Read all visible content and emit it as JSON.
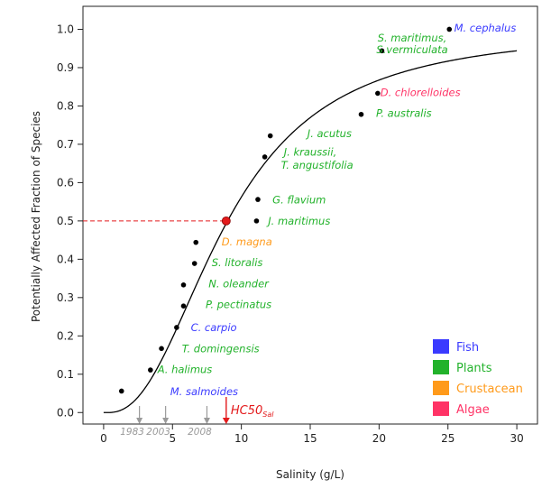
{
  "chart_data": {
    "type": "scatter",
    "xlabel": "Salinity (g/L)",
    "ylabel": "Potentially Affected Fraction of Species",
    "xlim": [
      -1.5,
      31.5
    ],
    "ylim": [
      -0.03,
      1.06
    ],
    "x_ticks": [
      "0",
      "5",
      "10",
      "15",
      "20",
      "25",
      "30"
    ],
    "y_ticks": [
      "0.0",
      "0.1",
      "0.2",
      "0.3",
      "0.4",
      "0.5",
      "0.6",
      "0.7",
      "0.8",
      "0.9",
      "1.0"
    ],
    "curve": {
      "type": "sigmoid",
      "x0": 0.3,
      "x50": 9.0,
      "slope": 2.3,
      "color": "#000000"
    },
    "hc50": {
      "x": 8.9,
      "y": 0.5,
      "label": "HC50",
      "subscript": "Sal",
      "color": "#e31a1c"
    },
    "year_markers": [
      {
        "x": 2.6,
        "label": "1983"
      },
      {
        "x": 4.5,
        "label": "2003"
      },
      {
        "x": 7.5,
        "label": "2008"
      }
    ],
    "colors": {
      "Fish": "#3a3aff",
      "Plants": "#22b22b",
      "Crustacean": "#ff9a1a",
      "Algae": "#ff3366",
      "marker_arrow": "#9a9a9a"
    },
    "legend": {
      "position": "bottom-right",
      "entries": [
        {
          "name": "Fish",
          "color": "#3a3aff"
        },
        {
          "name": "Plants",
          "color": "#22b22b"
        },
        {
          "name": "Crustacean",
          "color": "#ff9a1a"
        },
        {
          "name": "Algae",
          "color": "#ff3366"
        }
      ]
    },
    "points": [
      {
        "x": 1.3,
        "y": 0.056,
        "species": "M. salmoides",
        "group": "Fish"
      },
      {
        "x": 3.4,
        "y": 0.111,
        "species": "A. halimus",
        "group": "Plants"
      },
      {
        "x": 4.2,
        "y": 0.167,
        "species": "T. domingensis",
        "group": "Plants"
      },
      {
        "x": 5.3,
        "y": 0.222,
        "species": "C. carpio",
        "group": "Fish"
      },
      {
        "x": 5.8,
        "y": 0.278,
        "species": "P. pectinatus",
        "group": "Plants"
      },
      {
        "x": 5.8,
        "y": 0.333,
        "species": "N. oleander",
        "group": "Plants"
      },
      {
        "x": 6.6,
        "y": 0.389,
        "species": "S. litoralis",
        "group": "Plants"
      },
      {
        "x": 6.7,
        "y": 0.444,
        "species": "D. magna",
        "group": "Crustacean"
      },
      {
        "x": 11.1,
        "y": 0.5,
        "species": "J. maritimus",
        "group": "Plants"
      },
      {
        "x": 11.2,
        "y": 0.556,
        "species": "G. flavium",
        "group": "Plants"
      },
      {
        "x": 11.7,
        "y": 0.667,
        "species": "J. kraussii, T. angustifolia",
        "group": "Plants"
      },
      {
        "x": 12.1,
        "y": 0.722,
        "species": "J. acutus",
        "group": "Plants"
      },
      {
        "x": 18.7,
        "y": 0.778,
        "species": "P. australis",
        "group": "Plants"
      },
      {
        "x": 19.9,
        "y": 0.833,
        "species": "D. chlorelloides",
        "group": "Algae"
      },
      {
        "x": 20.2,
        "y": 0.944,
        "species": "S. maritimus, S.vermiculata",
        "group": "Plants"
      },
      {
        "x": 25.1,
        "y": 1.0,
        "species": "M. cephalus",
        "group": "Fish"
      }
    ],
    "species_labels": [
      {
        "text": "M. salmoides",
        "group": "Fish",
        "x": 7.3,
        "y": 0.055
      },
      {
        "text": "A. halimus",
        "group": "Plants",
        "x": 5.9,
        "y": 0.112
      },
      {
        "text": "T. domingensis",
        "group": "Plants",
        "x": 8.5,
        "y": 0.167
      },
      {
        "text": "C. carpio",
        "group": "Fish",
        "x": 8.0,
        "y": 0.222
      },
      {
        "text": "P. pectinatus",
        "group": "Plants",
        "x": 9.8,
        "y": 0.282
      },
      {
        "text": "N. oleander",
        "group": "Plants",
        "x": 9.8,
        "y": 0.336
      },
      {
        "text": "S. litoralis",
        "group": "Plants",
        "x": 9.7,
        "y": 0.391
      },
      {
        "text": "D. magna",
        "group": "Crustacean",
        "x": 10.4,
        "y": 0.445
      },
      {
        "text": "J. maritimus",
        "group": "Plants",
        "x": 14.2,
        "y": 0.5
      },
      {
        "text": "G. flavium",
        "group": "Plants",
        "x": 14.2,
        "y": 0.555
      },
      {
        "text": "J. kraussii,",
        "group": "Plants",
        "x": 15.0,
        "y": 0.68
      },
      {
        "text": "T. angustifolia",
        "group": "Plants",
        "x": 15.5,
        "y": 0.646
      },
      {
        "text": "J. acutus",
        "group": "Plants",
        "x": 16.4,
        "y": 0.728
      },
      {
        "text": "P. australis",
        "group": "Plants",
        "x": 21.8,
        "y": 0.781
      },
      {
        "text": "D. chlorelloides",
        "group": "Algae",
        "x": 23.0,
        "y": 0.835
      },
      {
        "text": "S. maritimus,",
        "group": "Plants",
        "x": 22.4,
        "y": 0.978
      },
      {
        "text": "S.vermiculata",
        "group": "Plants",
        "x": 22.4,
        "y": 0.947
      },
      {
        "text": "M. cephalus",
        "group": "Fish",
        "x": 27.7,
        "y": 1.003
      }
    ]
  }
}
